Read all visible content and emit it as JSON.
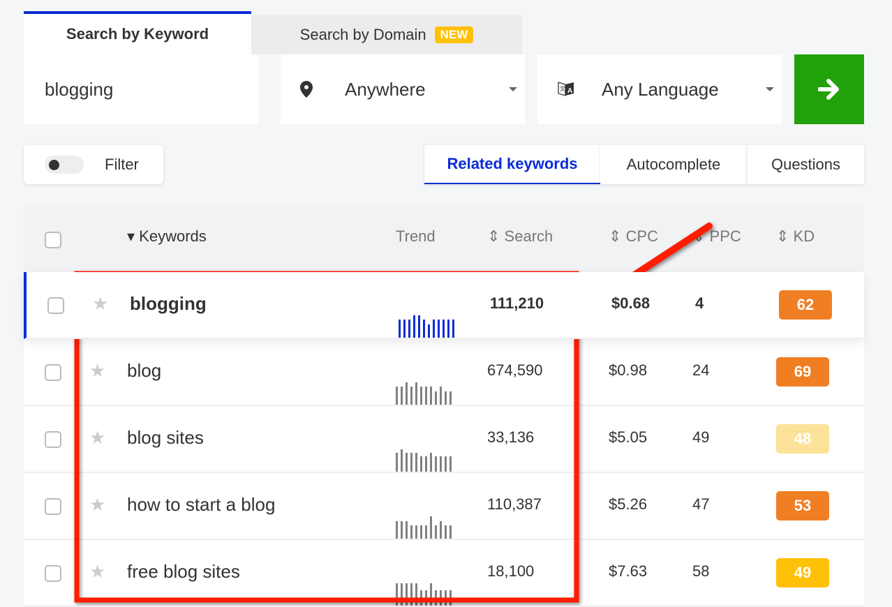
{
  "tabs": {
    "keyword": "Search by Keyword",
    "domain": "Search by Domain",
    "new_badge": "NEW"
  },
  "search": {
    "keyword": "blogging",
    "location": "Anywhere",
    "language": "Any Language"
  },
  "filter": {
    "label": "Filter",
    "enabled": false
  },
  "modes": {
    "related": "Related keywords",
    "autocomplete": "Autocomplete",
    "questions": "Questions",
    "active": "related"
  },
  "colors": {
    "accent": "#0c2bd8",
    "go": "#21a20b",
    "annotation": "#ff1a00"
  },
  "table": {
    "headers": {
      "keywords": "Keywords",
      "trend": "Trend",
      "search": "Search",
      "cpc": "CPC",
      "ppc": "PPC",
      "kd": "KD"
    },
    "rows": [
      {
        "keyword": "blogging",
        "search": "111,210",
        "cpc": "$0.68",
        "ppc": "4",
        "kd": "62",
        "kd_color": "#f07f24",
        "selected": true,
        "trend": [
          0.8,
          0.8,
          0.8,
          1,
          1,
          0.8,
          0.6,
          0.8,
          0.8,
          0.8,
          0.8,
          0.8
        ]
      },
      {
        "keyword": "blog",
        "search": "674,590",
        "cpc": "$0.98",
        "ppc": "24",
        "kd": "69",
        "kd_color": "#f07f24",
        "trend": [
          0.8,
          0.8,
          1,
          0.8,
          1,
          0.8,
          0.8,
          0.8,
          0.6,
          0.8,
          0.6,
          0.6
        ]
      },
      {
        "keyword": "blog sites",
        "search": "33,136",
        "cpc": "$5.05",
        "ppc": "49",
        "kd": "48",
        "kd_color": "#fde29a",
        "trend": [
          0.85,
          1,
          0.85,
          0.85,
          0.85,
          0.7,
          0.7,
          0.85,
          0.7,
          0.7,
          0.7,
          0.7
        ]
      },
      {
        "keyword": "how to start a blog",
        "search": "110,387",
        "cpc": "$5.26",
        "ppc": "47",
        "kd": "53",
        "kd_color": "#f07f24",
        "trend": [
          0.77,
          0.77,
          0.77,
          0.6,
          0.6,
          0.6,
          0.6,
          1,
          0.6,
          0.77,
          0.6,
          0.6
        ]
      },
      {
        "keyword": "free blog sites",
        "search": "18,100",
        "cpc": "$7.63",
        "ppc": "58",
        "kd": "49",
        "kd_color": "#ffc107",
        "trend": [
          1,
          1,
          1,
          1,
          1,
          0.7,
          0.7,
          1,
          0.7,
          0.7,
          0.7,
          0.7
        ]
      }
    ]
  }
}
